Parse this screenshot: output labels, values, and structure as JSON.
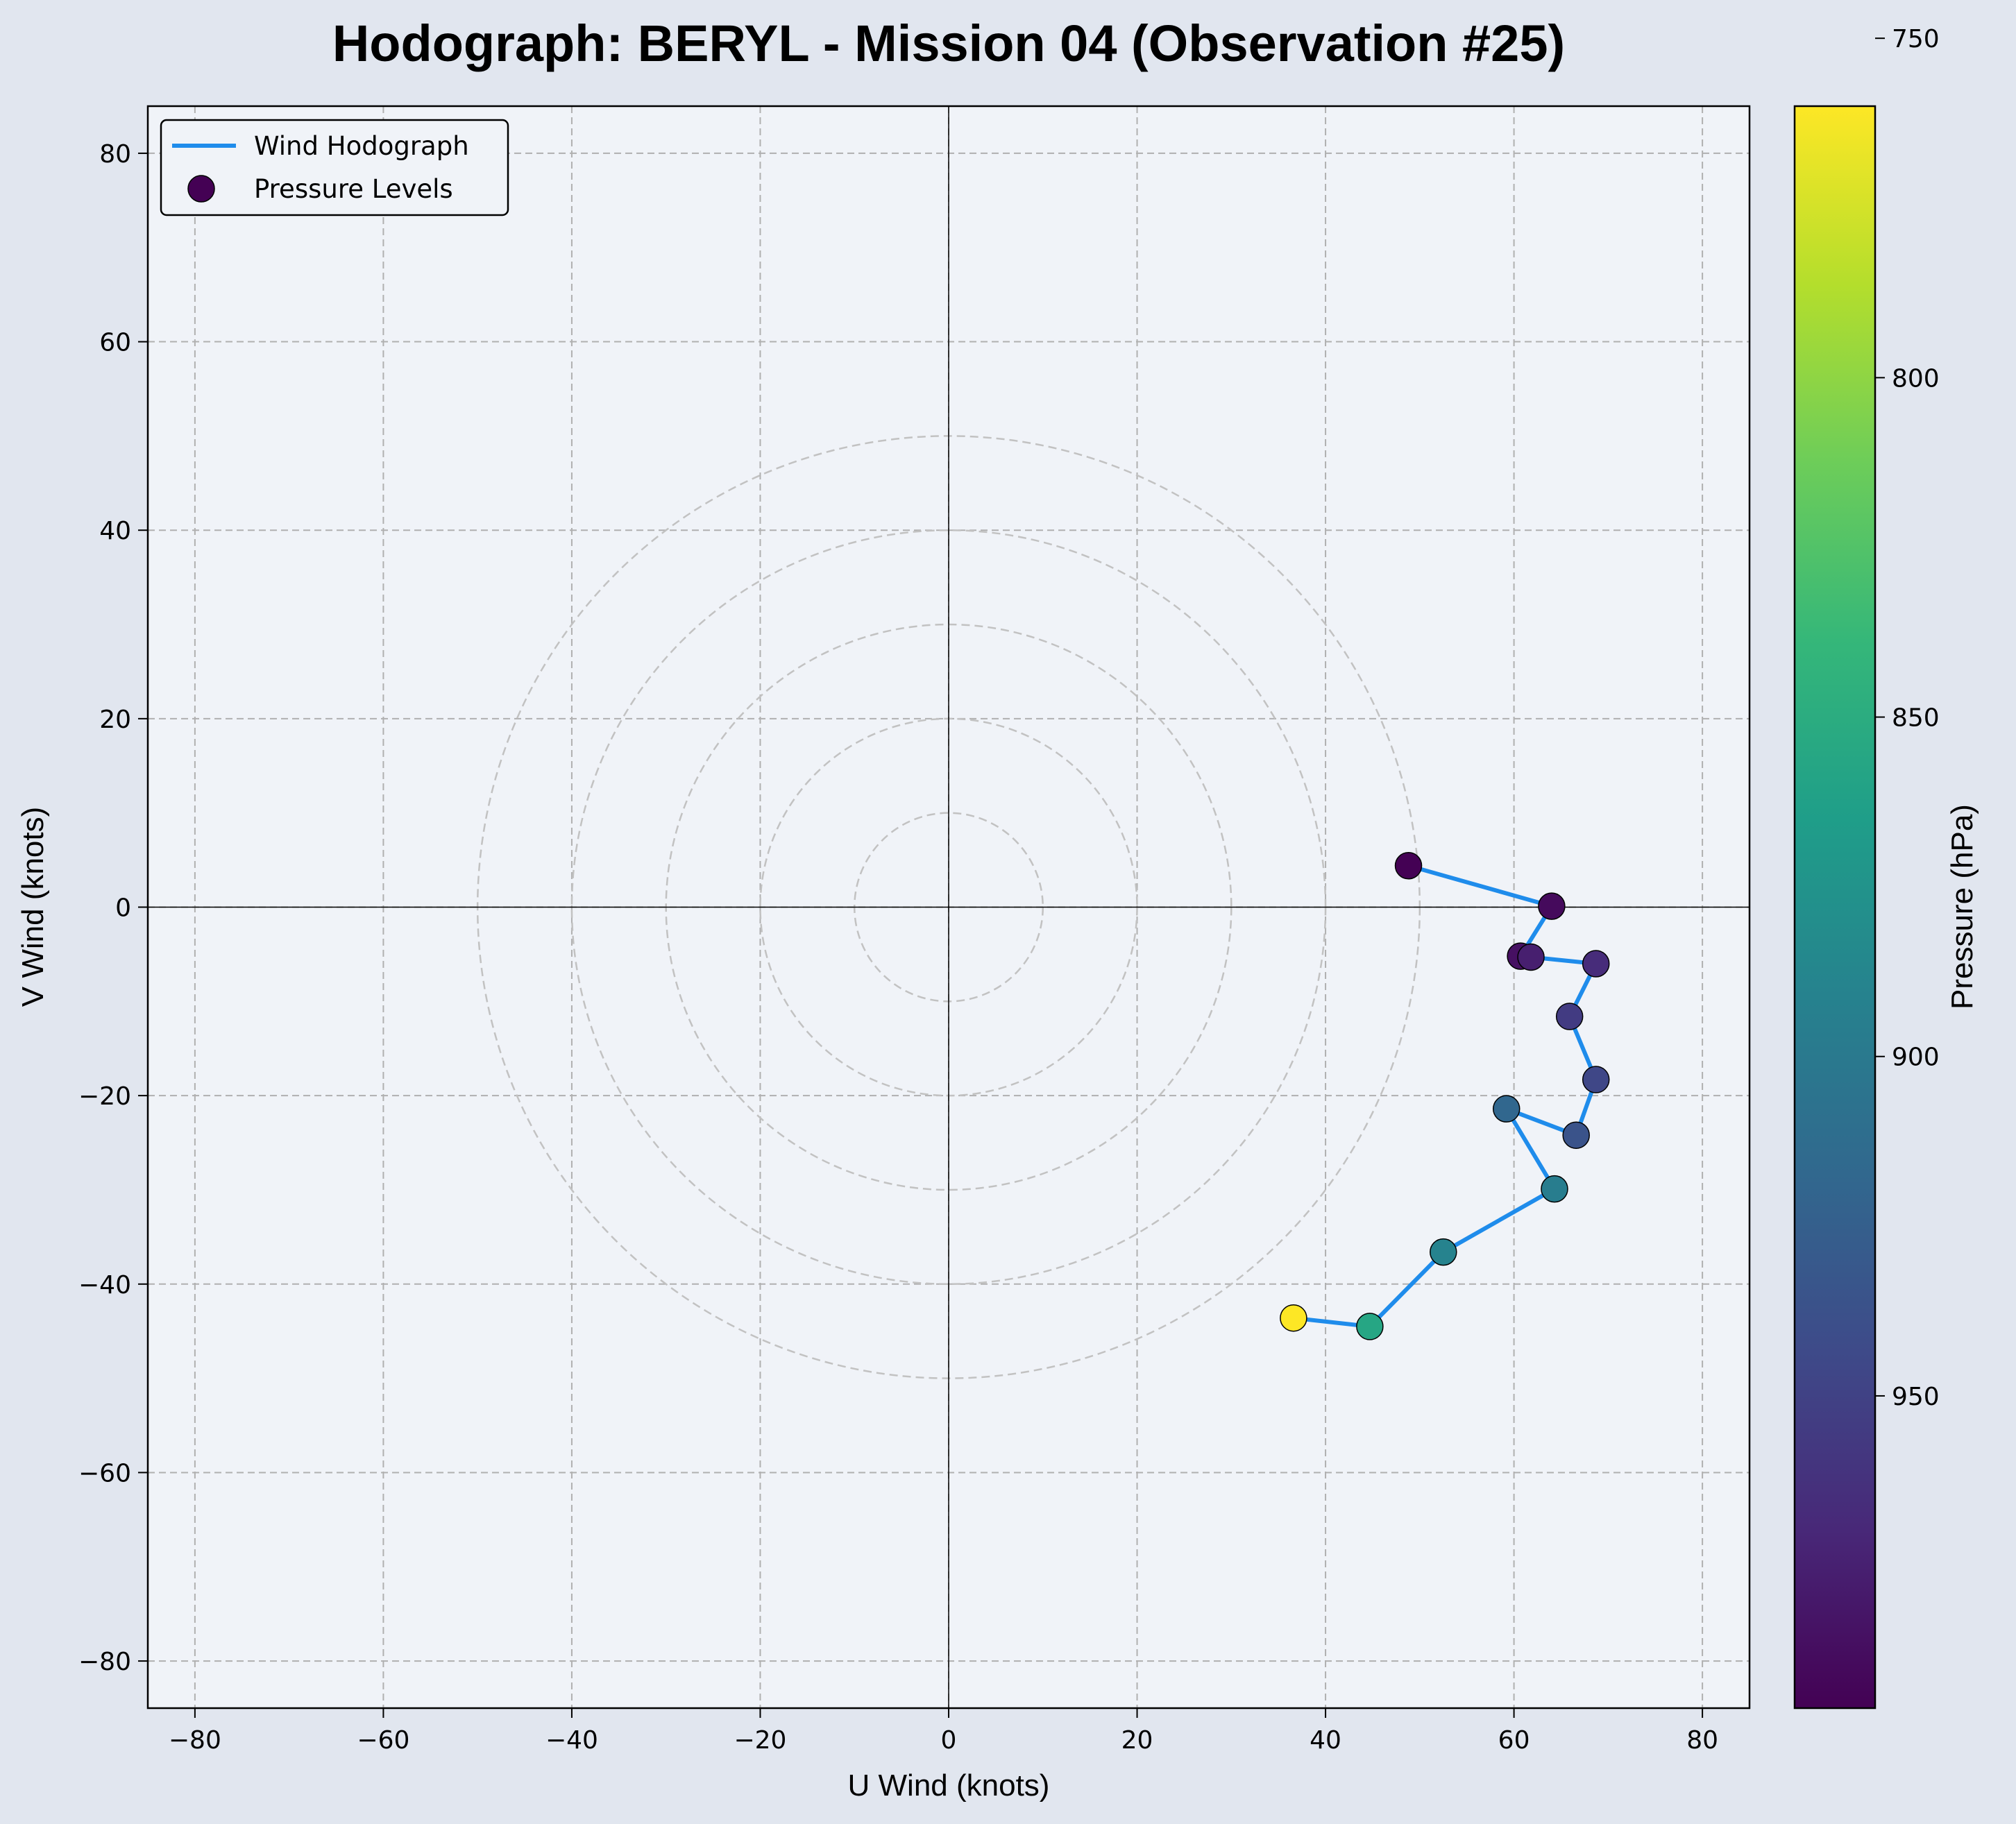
{
  "chart_data": {
    "type": "scatter",
    "title": "Hodograph: BERYL - Mission 04 (Observation #25)",
    "xlabel": "U Wind (knots)",
    "ylabel": "V Wind (knots)",
    "xlim": [
      -85,
      85
    ],
    "ylim": [
      -85,
      85
    ],
    "xticks": [
      -80,
      -60,
      -40,
      -20,
      0,
      20,
      40,
      60,
      80
    ],
    "yticks": [
      -80,
      -60,
      -40,
      -20,
      0,
      20,
      40,
      60,
      80
    ],
    "xtick_labels": [
      "−80",
      "−60",
      "−40",
      "−20",
      "0",
      "20",
      "40",
      "60",
      "80"
    ],
    "ytick_labels": [
      "−80",
      "−60",
      "−40",
      "−20",
      "0",
      "20",
      "40",
      "60",
      "80"
    ],
    "grid": true,
    "speed_rings": [
      10,
      20,
      30,
      40,
      50
    ],
    "legend": {
      "placement": "top-left",
      "entries": [
        "Wind Hodograph",
        "Pressure Levels"
      ]
    },
    "series": [
      {
        "name": "Wind Hodograph",
        "line_color": "#1f8ceb",
        "points": [
          {
            "u": 48.8,
            "v": 4.4,
            "p": 996
          },
          {
            "u": 64.0,
            "v": 0.1,
            "p": 990
          },
          {
            "u": 60.7,
            "v": -5.2,
            "p": 986
          },
          {
            "u": 61.8,
            "v": -5.3,
            "p": 976
          },
          {
            "u": 68.7,
            "v": -6.0,
            "p": 967
          },
          {
            "u": 65.9,
            "v": -11.6,
            "p": 955
          },
          {
            "u": 68.7,
            "v": -18.3,
            "p": 946
          },
          {
            "u": 66.6,
            "v": -24.2,
            "p": 936
          },
          {
            "u": 59.2,
            "v": -21.4,
            "p": 918
          },
          {
            "u": 64.3,
            "v": -29.9,
            "p": 896
          },
          {
            "u": 52.5,
            "v": -36.6,
            "p": 890
          },
          {
            "u": 44.7,
            "v": -44.5,
            "p": 856
          },
          {
            "u": 36.6,
            "v": -43.6,
            "p": 760
          }
        ]
      }
    ],
    "colorbar": {
      "label": "Pressure (hPa)",
      "colormap": "viridis",
      "range": [
        760,
        996
      ],
      "ticks": [
        750,
        800,
        850,
        900,
        950
      ],
      "tick_labels": [
        "750",
        "800",
        "850",
        "900",
        "950"
      ],
      "inverted": true
    },
    "colors": {
      "figure_background": "#e1e6ef",
      "plot_background": "#f0f3f8",
      "hodograph_line": "#1f8ceb"
    }
  }
}
